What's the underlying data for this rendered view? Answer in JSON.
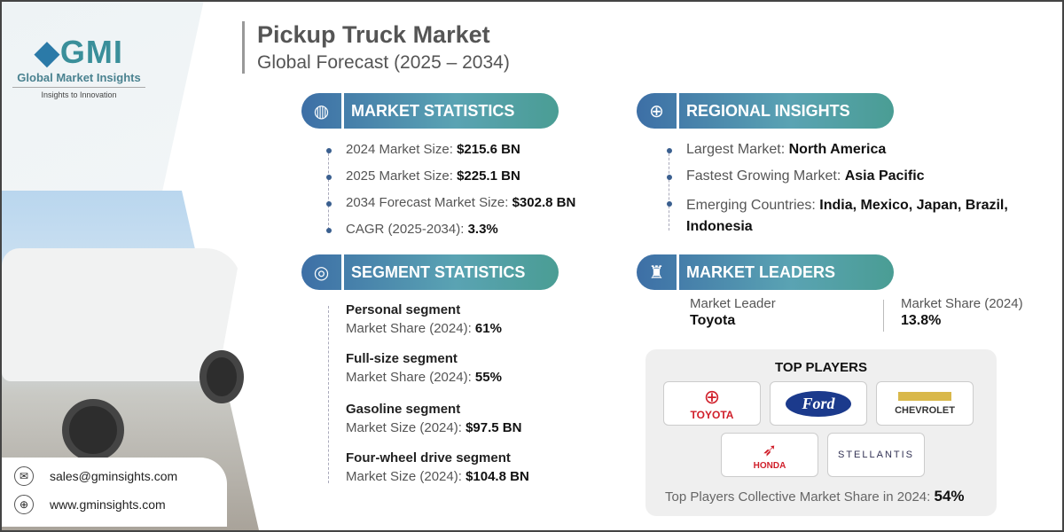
{
  "brand": {
    "name": "GMI",
    "full": "Global Market Insights",
    "tagline": "Insights to Innovation"
  },
  "header": {
    "title": "Pickup Truck Market",
    "subtitle": "Global Forecast (2025 – 2034)"
  },
  "market_statistics": {
    "heading": "MARKET STATISTICS",
    "items": [
      {
        "label": "2024 Market Size: ",
        "value": "$215.6 BN"
      },
      {
        "label": "2025 Market Size: ",
        "value": "$225.1 BN"
      },
      {
        "label": "2034 Forecast Market Size: ",
        "value": "$302.8 BN"
      },
      {
        "label": "CAGR (2025-2034): ",
        "value": "3.3%"
      }
    ]
  },
  "regional_insights": {
    "heading": "REGIONAL INSIGHTS",
    "items": [
      {
        "label": "Largest Market: ",
        "value": "North America"
      },
      {
        "label": "Fastest Growing Market: ",
        "value": "Asia Pacific"
      },
      {
        "label": "Emerging Countries: ",
        "value": "India, Mexico, Japan, Brazil, Indonesia"
      }
    ]
  },
  "segment_statistics": {
    "heading": "SEGMENT STATISTICS",
    "items": [
      {
        "name": "Personal segment",
        "label": "Market Share (2024): ",
        "value": "61%"
      },
      {
        "name": "Full-size segment",
        "label": "Market Share (2024): ",
        "value": "55%"
      },
      {
        "name": "Gasoline segment",
        "label": "Market Size (2024): ",
        "value": "$97.5 BN"
      },
      {
        "name": "Four-wheel drive segment",
        "label": "Market Size (2024): ",
        "value": "$104.8 BN"
      }
    ]
  },
  "market_leaders": {
    "heading": "MARKET LEADERS",
    "leader_label": "Market Leader",
    "leader": "Toyota",
    "share_label": "Market Share (2024)",
    "share": "13.8%"
  },
  "top_players": {
    "heading": "TOP PLAYERS",
    "players": [
      "TOYOTA",
      "Ford",
      "CHEVROLET",
      "HONDA",
      "STELLANTIS"
    ],
    "footer_label": "Top Players Collective Market Share in 2024: ",
    "footer_value": "54%"
  },
  "contact": {
    "email": "sales@gminsights.com",
    "website": "www.gminsights.com"
  },
  "colors": {
    "accent_blue": "#3d6fa6",
    "accent_teal": "#4a9d94"
  }
}
